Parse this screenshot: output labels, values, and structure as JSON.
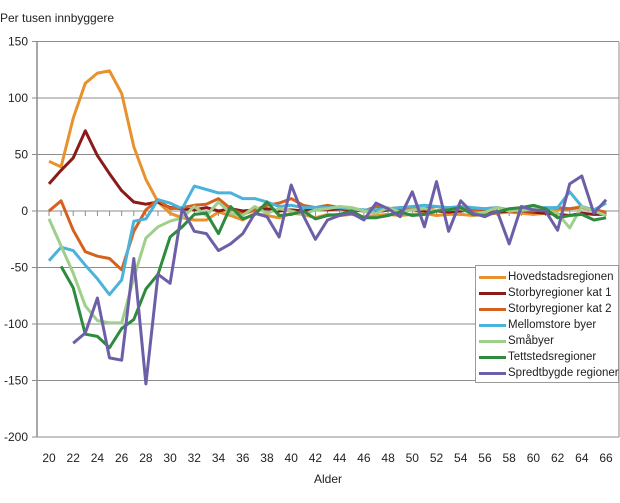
{
  "chart_data": {
    "type": "line",
    "title": "",
    "ylabel": "Per tusen innbyggere",
    "xlabel": "Alder",
    "ylim": [
      -200,
      150
    ],
    "yticks": [
      150,
      100,
      50,
      0,
      -50,
      -100,
      -150,
      -200
    ],
    "xlim": [
      19,
      67
    ],
    "xticks": [
      20,
      22,
      24,
      26,
      28,
      30,
      32,
      34,
      36,
      38,
      40,
      42,
      44,
      46,
      48,
      50,
      52,
      54,
      56,
      58,
      60,
      62,
      64,
      66
    ],
    "grid": "horizontal",
    "legend_position": "bottom-right",
    "x": [
      20,
      21,
      22,
      23,
      24,
      25,
      26,
      27,
      28,
      29,
      30,
      31,
      32,
      33,
      34,
      35,
      36,
      37,
      38,
      39,
      40,
      41,
      42,
      43,
      44,
      45,
      46,
      47,
      48,
      49,
      50,
      51,
      52,
      53,
      54,
      55,
      56,
      57,
      58,
      59,
      60,
      61,
      62,
      63,
      64,
      65,
      66
    ],
    "series": [
      {
        "name": "Hovedstadsregionen",
        "color": "#e8922e",
        "values": [
          44,
          39,
          82,
          113,
          122,
          124,
          104,
          57,
          28,
          8,
          -2,
          -6,
          -8,
          -8,
          -1,
          -4,
          -8,
          -2,
          -4,
          -6,
          -2,
          -3,
          -6,
          -3,
          -4,
          -3,
          -5,
          -4,
          -3,
          -4,
          -3,
          -2,
          -4,
          -3,
          -3,
          -4,
          -3,
          -2,
          -1,
          -2,
          -3,
          -2,
          1,
          2,
          4,
          0,
          -4
        ]
      },
      {
        "name": "Storbyregioner kat 1",
        "color": "#8b1a1a",
        "values": [
          24,
          36,
          47,
          71,
          49,
          33,
          18,
          8,
          6,
          8,
          3,
          2,
          1,
          3,
          0,
          2,
          0,
          1,
          2,
          0,
          1,
          0,
          2,
          1,
          2,
          1,
          0,
          -1,
          1,
          0,
          1,
          0,
          0,
          -1,
          0,
          1,
          0,
          -1,
          0,
          0,
          -1,
          -2,
          -3,
          -4,
          -2,
          -3,
          -3
        ]
      },
      {
        "name": "Storbyregioner kat 2",
        "color": "#d4621e",
        "values": [
          0,
          9,
          -17,
          -36,
          -40,
          -42,
          -52,
          -18,
          1,
          10,
          2,
          3,
          5,
          6,
          11,
          2,
          -3,
          1,
          5,
          7,
          11,
          5,
          3,
          5,
          3,
          2,
          0,
          4,
          2,
          3,
          2,
          2,
          4,
          2,
          3,
          1,
          2,
          3,
          1,
          0,
          0,
          2,
          3,
          2,
          3,
          1,
          -1
        ]
      },
      {
        "name": "Mellomstore byer",
        "color": "#4ab3dc",
        "values": [
          -44,
          -32,
          -35,
          -48,
          -60,
          -74,
          -61,
          -9,
          -7,
          10,
          7,
          2,
          22,
          19,
          16,
          16,
          11,
          11,
          8,
          4,
          5,
          3,
          3,
          3,
          3,
          2,
          1,
          1,
          2,
          3,
          4,
          5,
          4,
          3,
          4,
          3,
          2,
          3,
          1,
          0,
          2,
          3,
          3,
          17,
          4,
          1,
          7
        ]
      },
      {
        "name": "Småbyer",
        "color": "#9fcf8a",
        "values": [
          -7,
          -31,
          -55,
          -84,
          -97,
          -99,
          -99,
          -59,
          -24,
          -14,
          -9,
          -6,
          4,
          -4,
          8,
          -2,
          -4,
          4,
          -2,
          2,
          0,
          -3,
          1,
          2,
          4,
          3,
          0,
          -2,
          3,
          -1,
          1,
          2,
          0,
          1,
          2,
          -2,
          -1,
          3,
          0,
          1,
          2,
          1,
          -2,
          -15,
          4,
          0,
          -4
        ]
      },
      {
        "name": "Tettstedsregioner",
        "color": "#2e8b3e",
        "values": [
          null,
          -49,
          -68,
          -109,
          -111,
          -121,
          -104,
          -96,
          -69,
          -56,
          -23,
          -14,
          -3,
          -2,
          -20,
          4,
          -7,
          -3,
          8,
          -4,
          -3,
          0,
          -7,
          -4,
          -3,
          0,
          -6,
          -6,
          -4,
          -1,
          -4,
          -3,
          0,
          1,
          3,
          -3,
          -4,
          -1,
          2,
          3,
          5,
          2,
          -6,
          -4,
          -3,
          -8,
          -6
        ]
      },
      {
        "name": "Spredtbygde regioner",
        "color": "#6c5fa8",
        "values": [
          null,
          null,
          -117,
          -108,
          -77,
          -130,
          -132,
          -42,
          -153,
          -56,
          -64,
          2,
          -18,
          -20,
          -35,
          -29,
          -20,
          -2,
          -5,
          -23,
          23,
          -4,
          -25,
          -8,
          -4,
          -2,
          -8,
          7,
          2,
          -5,
          17,
          -14,
          26,
          -18,
          9,
          -2,
          -5,
          0,
          -29,
          4,
          1,
          0,
          -17,
          24,
          31,
          -2,
          10
        ]
      }
    ]
  }
}
